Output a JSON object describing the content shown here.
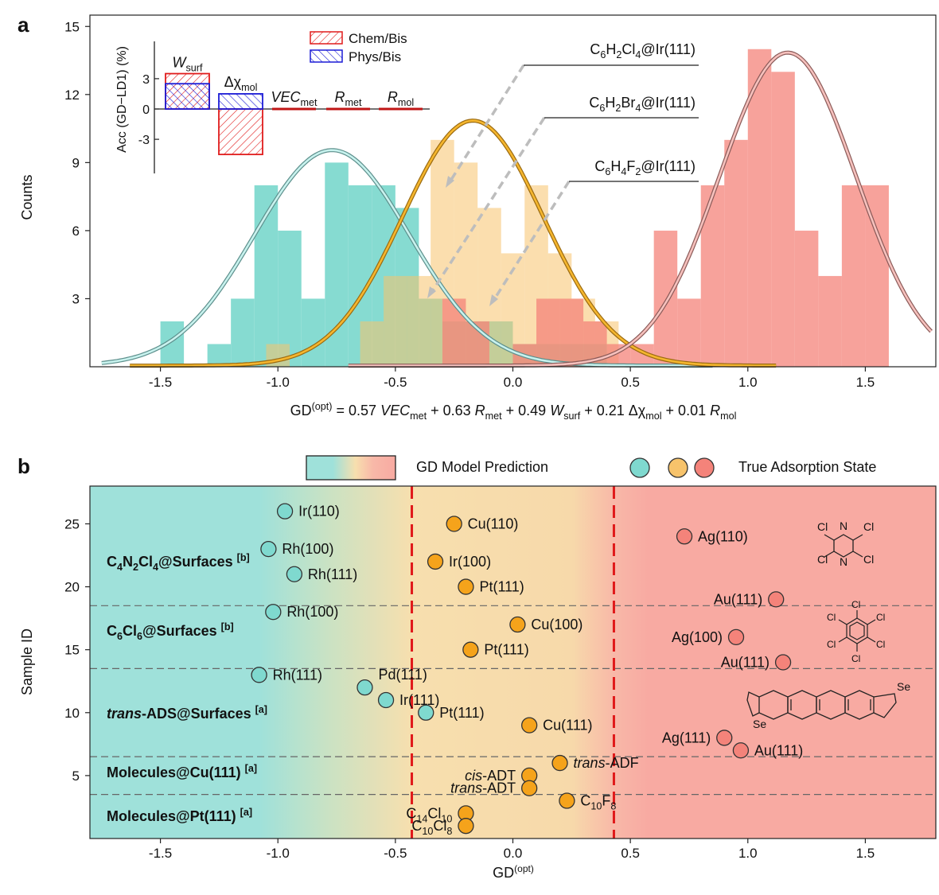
{
  "panel_a": {
    "label": "a",
    "ylabel": "Counts",
    "formula": {
      "lhs": "GD",
      "lhs_sup": "(opt)",
      "terms": [
        {
          "coef": "0.57",
          "var": "VEC",
          "sub": "met",
          "italic": true
        },
        {
          "coef": "0.63",
          "var": "R",
          "sub": "met",
          "italic": true
        },
        {
          "coef": "0.49",
          "var": "W",
          "sub": "surf",
          "italic": true
        },
        {
          "coef": "0.21",
          "var": "Δχ",
          "sub": "mol",
          "italic": false
        },
        {
          "coef": "0.01",
          "var": "R",
          "sub": "mol",
          "italic": true
        }
      ]
    },
    "annotations": [
      {
        "parts": [
          [
            "C",
            ""
          ],
          [
            "6",
            "sub"
          ],
          [
            "H",
            ""
          ],
          [
            "2",
            "sub"
          ],
          [
            "Cl",
            ""
          ],
          [
            "4",
            "sub"
          ],
          [
            "@Ir(111)",
            ""
          ]
        ]
      },
      {
        "parts": [
          [
            "C",
            ""
          ],
          [
            "6",
            "sub"
          ],
          [
            "H",
            ""
          ],
          [
            "2",
            "sub"
          ],
          [
            "Br",
            ""
          ],
          [
            "4",
            "sub"
          ],
          [
            "@Ir(111)",
            ""
          ]
        ]
      },
      {
        "parts": [
          [
            "C",
            ""
          ],
          [
            "6",
            "sub"
          ],
          [
            "H",
            ""
          ],
          [
            "4",
            "sub"
          ],
          [
            "F",
            ""
          ],
          [
            "2",
            "sub"
          ],
          [
            "@Ir(111)",
            ""
          ]
        ]
      }
    ],
    "inset": {
      "ylabel": "Acc (GD−LD1) (%)",
      "yticks": [
        "3",
        "0",
        "-3"
      ],
      "legend": [
        {
          "label": "Chem/Bis",
          "color": "#e01b1b"
        },
        {
          "label": "Phys/Bis",
          "color": "#1b1bd6"
        }
      ],
      "features": [
        {
          "var": "W",
          "sub": "surf",
          "italic": true,
          "chem": 3.5,
          "phys": 2.5
        },
        {
          "var": "Δχ",
          "sub": "mol",
          "italic": false,
          "chem": -4.5,
          "phys": 1.5
        },
        {
          "var": "VEC",
          "sub": "met",
          "italic": true,
          "chem": 0,
          "phys": 0
        },
        {
          "var": "R",
          "sub": "met",
          "italic": true,
          "chem": 0,
          "phys": 0
        },
        {
          "var": "R",
          "sub": "mol",
          "italic": true,
          "chem": 0,
          "phys": 0
        }
      ]
    }
  },
  "panel_b": {
    "label": "b",
    "xlabel": "GD",
    "xlabel_sup": "(opt)",
    "ylabel": "Sample ID",
    "legend_gradient_label": "GD Model Prediction",
    "legend_state_label": "True Adsorption State",
    "groups": [
      {
        "parts": [
          [
            "C",
            ""
          ],
          [
            "4",
            "sub"
          ],
          [
            "N",
            ""
          ],
          [
            "2",
            "sub"
          ],
          [
            "Cl",
            ""
          ],
          [
            "4",
            "sub"
          ],
          [
            "@Surfaces ",
            ""
          ],
          [
            "[b]",
            "sup"
          ]
        ]
      },
      {
        "parts": [
          [
            "C",
            ""
          ],
          [
            "6",
            "sub"
          ],
          [
            "Cl",
            ""
          ],
          [
            "6",
            "sub"
          ],
          [
            "@Surfaces ",
            ""
          ],
          [
            "[b]",
            "sup"
          ]
        ]
      },
      {
        "parts": [
          [
            "trans",
            "it"
          ],
          [
            "-ADS@Surfaces ",
            ""
          ],
          [
            "[a]",
            "sup"
          ]
        ]
      },
      {
        "parts": [
          [
            "Molecules@Cu(111) ",
            ""
          ],
          [
            "[a]",
            "sup"
          ]
        ]
      },
      {
        "parts": [
          [
            "Molecules@Pt(111) ",
            ""
          ],
          [
            "[a]",
            "sup"
          ]
        ]
      }
    ],
    "molecule_labels": {
      "atom_cl": "Cl",
      "atom_n": "N",
      "atom_se": "Se"
    }
  },
  "colors": {
    "teal": "#7fd9cf",
    "orange": "#f5a31b",
    "salmon": "#f4837a",
    "gradient_left": "#9fe1da",
    "gradient_mid": "#f7dfae",
    "gradient_right": "#f8aaa2",
    "threshold_line": "#e0191a"
  },
  "chart_data": [
    {
      "type": "bar",
      "panel": "a",
      "xlabel": "GD(opt) = 0.57 VECmet + 0.63 Rmet + 0.49 Wsurf + 0.21 Δχmol + 0.01 Rmol",
      "ylabel": "Counts",
      "xlim": [
        -1.8,
        1.8
      ],
      "ylim": [
        0,
        15.5
      ],
      "xticks": [
        -1.5,
        -1.0,
        -0.5,
        0.0,
        0.5,
        1.0,
        1.5
      ],
      "xtick_labels": [
        "-1.5",
        "-1.0",
        "-0.5",
        "0.0",
        "0.5",
        "1.0",
        "1.5"
      ],
      "yticks": [
        3,
        6,
        9,
        12,
        15
      ],
      "ytick_labels": [
        "3",
        "6",
        "9",
        "12",
        "15"
      ],
      "bin_width": 0.1,
      "series": [
        {
          "name": "teal",
          "bins": [
            [
              -1.45,
              2
            ],
            [
              -1.25,
              1
            ],
            [
              -1.15,
              3
            ],
            [
              -1.05,
              8
            ],
            [
              -0.95,
              6
            ],
            [
              -0.85,
              3
            ],
            [
              -0.75,
              9
            ],
            [
              -0.65,
              8
            ],
            [
              -0.55,
              8
            ],
            [
              -0.45,
              7
            ],
            [
              -0.35,
              3
            ],
            [
              -0.25,
              2
            ],
            [
              -0.15,
              2
            ],
            [
              -0.05,
              2
            ],
            [
              0.05,
              1
            ],
            [
              0.15,
              1
            ],
            [
              0.25,
              1
            ],
            [
              0.35,
              1
            ]
          ]
        },
        {
          "name": "orange",
          "bins": [
            [
              -1.0,
              1
            ],
            [
              -0.6,
              2
            ],
            [
              -0.5,
              4
            ],
            [
              -0.4,
              4
            ],
            [
              -0.3,
              10
            ],
            [
              -0.2,
              9
            ],
            [
              -0.1,
              7
            ],
            [
              0.0,
              5
            ],
            [
              0.1,
              8
            ],
            [
              0.2,
              5
            ],
            [
              0.3,
              3
            ],
            [
              0.4,
              2
            ]
          ]
        },
        {
          "name": "salmon",
          "bins": [
            [
              -0.25,
              3
            ],
            [
              -0.15,
              2
            ],
            [
              0.05,
              1
            ],
            [
              0.15,
              3
            ],
            [
              0.25,
              3
            ],
            [
              0.35,
              2
            ],
            [
              0.45,
              1
            ],
            [
              0.55,
              1
            ],
            [
              0.65,
              6
            ],
            [
              0.75,
              3
            ],
            [
              0.85,
              8
            ],
            [
              0.95,
              10
            ],
            [
              1.05,
              14
            ],
            [
              1.15,
              13
            ],
            [
              1.25,
              6
            ],
            [
              1.35,
              4
            ],
            [
              1.45,
              8
            ],
            [
              1.55,
              8
            ]
          ]
        }
      ],
      "fits": [
        {
          "name": "teal",
          "mu": -0.77,
          "sigma": 0.33,
          "peak": 9.5,
          "range": [
            -1.75,
            0.85
          ]
        },
        {
          "name": "orange",
          "mu": -0.17,
          "sigma": 0.3,
          "peak": 10.8,
          "range": [
            -1.63,
            1.12
          ]
        },
        {
          "name": "salmon",
          "mu": 1.17,
          "sigma": 0.29,
          "peak": 13.8,
          "range": [
            -0.7,
            1.78
          ]
        }
      ]
    },
    {
      "type": "scatter",
      "panel": "b",
      "xlabel": "GD(opt)",
      "ylabel": "Sample ID",
      "xlim": [
        -1.8,
        1.8
      ],
      "ylim": [
        0,
        28
      ],
      "xticks": [
        -1.5,
        -1.0,
        -0.5,
        0.0,
        0.5,
        1.0,
        1.5
      ],
      "xtick_labels": [
        "-1.5",
        "-1.0",
        "-0.5",
        "0.0",
        "0.5",
        "1.0",
        "1.5"
      ],
      "yticks": [
        5,
        10,
        15,
        20,
        25
      ],
      "ytick_labels": [
        "5",
        "10",
        "15",
        "20",
        "25"
      ],
      "thresholds": [
        -0.43,
        0.43
      ],
      "group_separators": [
        3.5,
        6.5,
        13.5,
        18.5
      ],
      "points": [
        {
          "x": -0.97,
          "y": 26,
          "state": "teal",
          "label": "Ir(110)"
        },
        {
          "x": -0.25,
          "y": 25,
          "state": "orange",
          "label": "Cu(110)"
        },
        {
          "x": 0.73,
          "y": 24,
          "state": "salmon",
          "label": "Ag(110)"
        },
        {
          "x": -1.04,
          "y": 23,
          "state": "teal",
          "label": "Rh(100)"
        },
        {
          "x": -0.33,
          "y": 22,
          "state": "orange",
          "label": "Ir(100)"
        },
        {
          "x": -0.93,
          "y": 21,
          "state": "teal",
          "label": "Rh(111)"
        },
        {
          "x": -0.2,
          "y": 20,
          "state": "orange",
          "label": "Pt(111)"
        },
        {
          "x": 1.12,
          "y": 19,
          "state": "salmon",
          "label": "Au(111)",
          "label_side": "left"
        },
        {
          "x": -1.02,
          "y": 18,
          "state": "teal",
          "label": "Rh(100)"
        },
        {
          "x": 0.02,
          "y": 17,
          "state": "orange",
          "label": "Cu(100)"
        },
        {
          "x": 0.95,
          "y": 16,
          "state": "salmon",
          "label": "Ag(100)",
          "label_side": "left"
        },
        {
          "x": -0.18,
          "y": 15,
          "state": "orange",
          "label": "Pt(111)"
        },
        {
          "x": 1.15,
          "y": 14,
          "state": "salmon",
          "label": "Au(111)",
          "label_side": "left"
        },
        {
          "x": -1.08,
          "y": 13,
          "state": "teal",
          "label": "Rh(111)"
        },
        {
          "x": -0.63,
          "y": 12,
          "state": "teal",
          "label": "Pd(111)",
          "label_pos": "above"
        },
        {
          "x": -0.54,
          "y": 11,
          "state": "teal",
          "label": "Ir(111)"
        },
        {
          "x": -0.37,
          "y": 10,
          "state": "teal",
          "label": "Pt(111)"
        },
        {
          "x": 0.07,
          "y": 9,
          "state": "orange",
          "label": "Cu(111)"
        },
        {
          "x": 0.9,
          "y": 8,
          "state": "salmon",
          "label": "Ag(111)",
          "label_side": "left"
        },
        {
          "x": 0.97,
          "y": 7,
          "state": "salmon",
          "label": "Au(111)"
        },
        {
          "x": 0.2,
          "y": 6,
          "state": "orange",
          "label": "-ADF",
          "label_it": "trans"
        },
        {
          "x": 0.07,
          "y": 5,
          "state": "orange",
          "label": "-ADT",
          "label_it": "cis",
          "label_side": "left"
        },
        {
          "x": 0.07,
          "y": 4,
          "state": "orange",
          "label": "-ADT",
          "label_it": "trans",
          "label_side": "left"
        },
        {
          "x": 0.23,
          "y": 3,
          "state": "orange",
          "label_parts": [
            [
              "C",
              ""
            ],
            [
              "10",
              "sub"
            ],
            [
              "F",
              ""
            ],
            [
              "8",
              "sub"
            ]
          ]
        },
        {
          "x": -0.2,
          "y": 2,
          "state": "orange",
          "label_parts": [
            [
              "C",
              ""
            ],
            [
              "14",
              "sub"
            ],
            [
              "Cl",
              ""
            ],
            [
              "10",
              "sub"
            ]
          ],
          "label_side": "left"
        },
        {
          "x": -0.2,
          "y": 1,
          "state": "orange",
          "label_parts": [
            [
              "C",
              ""
            ],
            [
              "10",
              "sub"
            ],
            [
              "Cl",
              ""
            ],
            [
              "8",
              "sub"
            ]
          ],
          "label_side": "left"
        }
      ]
    }
  ]
}
